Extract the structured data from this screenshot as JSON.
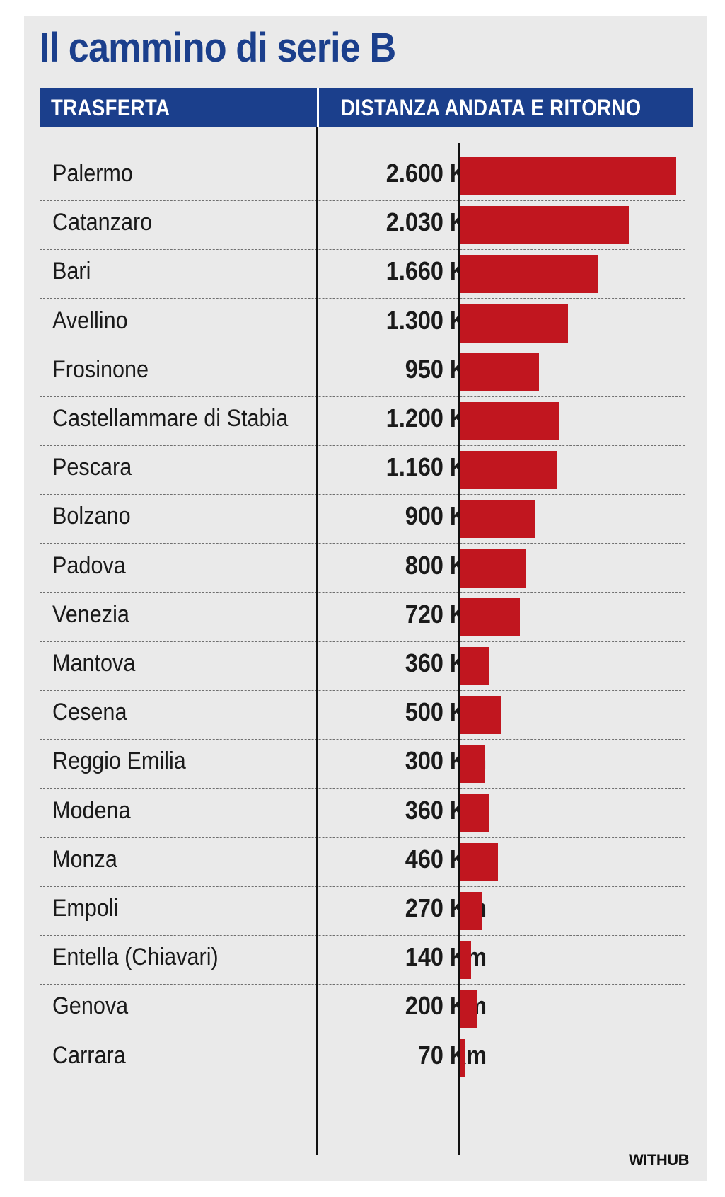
{
  "title": "Il cammino di serie B",
  "header": {
    "col1": "TRASFERTA",
    "col2": "DISTANZA ANDATA E RITORNO"
  },
  "credit": "WITHUB",
  "colors": {
    "accent": "#1b3f8c",
    "bar": "#c1161f",
    "panel": "#eaeaea"
  },
  "chart_data": {
    "type": "bar",
    "orientation": "horizontal",
    "title": "Il cammino di serie B",
    "categories": [
      "Palermo",
      "Catanzaro",
      "Bari",
      "Avellino",
      "Frosinone",
      "Castellammare di Stabia",
      "Pescara",
      "Bolzano",
      "Padova",
      "Venezia",
      "Mantova",
      "Cesena",
      "Reggio Emilia",
      "Modena",
      "Monza",
      "Empoli",
      "Entella (Chiavari)",
      "Genova",
      "Carrara"
    ],
    "values": [
      2600,
      2030,
      1660,
      1300,
      950,
      1200,
      1160,
      900,
      800,
      720,
      360,
      500,
      300,
      360,
      460,
      270,
      140,
      200,
      70
    ],
    "value_labels": [
      "2.600 Km",
      "2.030 Km",
      "1.660 Km",
      "1.300 Km",
      "950 Km",
      "1.200 Km",
      "1.160 Km",
      "900 Km",
      "800 Km",
      "720 Km",
      "360 Km",
      "500 Km",
      "300 Km",
      "360 Km",
      "460 Km",
      "270 Km",
      "140 Km",
      "200 Km",
      "70 Km"
    ],
    "xlim": [
      0,
      2600
    ]
  }
}
